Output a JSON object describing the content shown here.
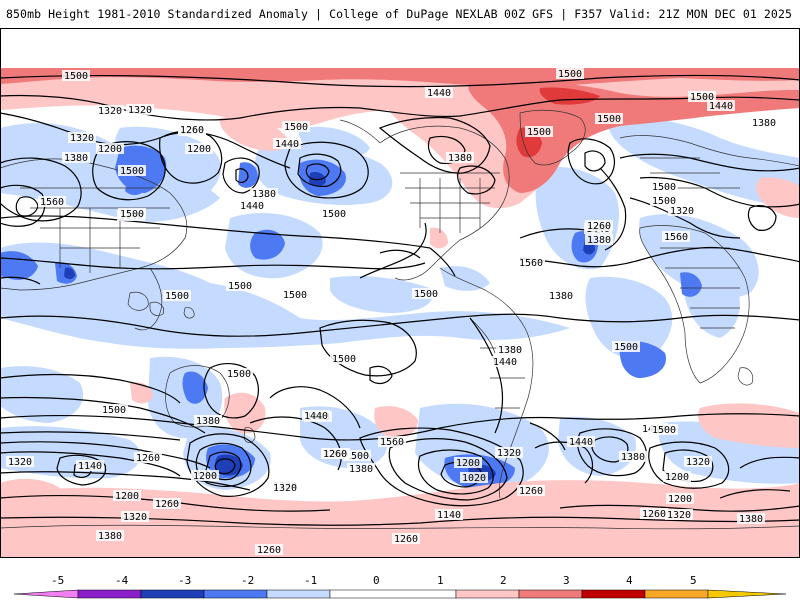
{
  "header": {
    "title_left": "850mb Height 1981-2010 Standardized Anomaly | College of DuPage NEXLAB",
    "title_right": "00Z GFS | F357 Valid: 21Z MON DEC 01 2025"
  },
  "colors": {
    "neg5": "#f27ff2",
    "neg4": "#8a1fc9",
    "neg3": "#1d3fb8",
    "neg2": "#4d79f2",
    "neg1": "#c4dbff",
    "zero": "#ffffff",
    "pos1": "#ffc6c6",
    "pos2": "#f07a7a",
    "pos3": "#e03a3a",
    "pos4": "#c00000",
    "pos5": "#f9a825"
  },
  "legend": {
    "ticks": [
      "-5",
      "-4",
      "-3",
      "-2",
      "-1",
      "0",
      "1",
      "2",
      "3",
      "4",
      "5"
    ]
  },
  "contour_labels": [
    "1500",
    "1440",
    "1320",
    "1260",
    "1200",
    "1380",
    "1560",
    "1140",
    "1020",
    "1500",
    "1500",
    "1500",
    "1500",
    "1380",
    "1440",
    "1500",
    "1500",
    "1440",
    "1380",
    "1500",
    "1320",
    "1260",
    "1200",
    "1380",
    "1440",
    "1500",
    "1320",
    "1260",
    "1320",
    "1200",
    "1260",
    "1320",
    "1380",
    "1500",
    "1440",
    "1560",
    "1500",
    "1380",
    "1260",
    "1260",
    "1200",
    "1140",
    "1320",
    "1440",
    "1500",
    "1500",
    "1560",
    "1500",
    "1500",
    "1500",
    "1380",
    "1440",
    "1380",
    "1500",
    "1320",
    "1260",
    "1200",
    "1320",
    "1260",
    "1380",
    "1440",
    "1380",
    "1440",
    "1500",
    "1560",
    "1500",
    "1500",
    "1380",
    "1500",
    "1440",
    "1320",
    "1320",
    "1380",
    "1260",
    "1200",
    "1260",
    "1140",
    "1200",
    "1260",
    "1320"
  ],
  "map_icons": {
    "grid": "country-borders",
    "contours": "height-contours"
  }
}
